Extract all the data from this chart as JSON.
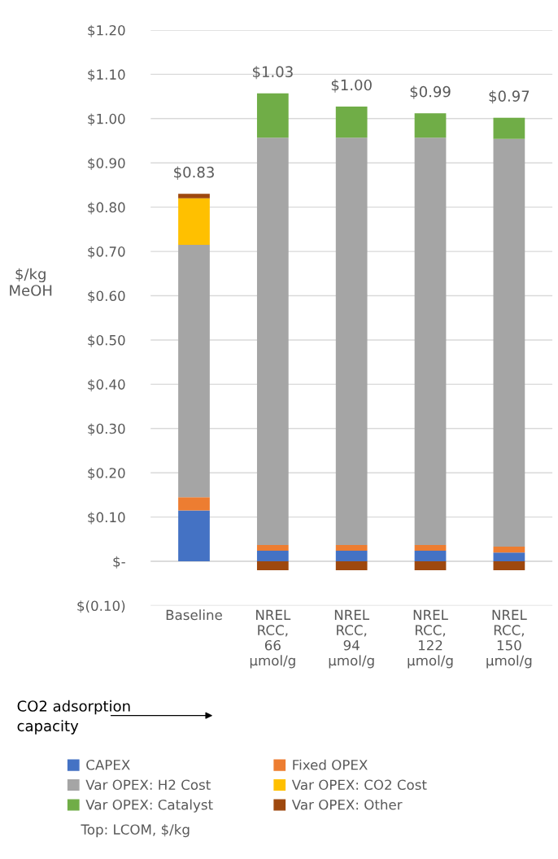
{
  "chart_data": {
    "type": "bar",
    "stacked": true,
    "ylabel": "$/kg\nMeOH",
    "categories": [
      "Baseline",
      "NREL\nRCC,\n66\nμmol/g",
      "NREL\nRCC,\n94\nμmol/g",
      "NREL\nRCC,\n122\nμmol/g",
      "NREL\nRCC,\n150\nμmol/g"
    ],
    "series": [
      {
        "name": "CAPEX",
        "color": "#4472c4",
        "values": [
          0.115,
          0.024,
          0.024,
          0.024,
          0.02
        ]
      },
      {
        "name": "Fixed OPEX",
        "color": "#ed7d31",
        "values": [
          0.03,
          0.013,
          0.013,
          0.013,
          0.013
        ]
      },
      {
        "name": "Var OPEX: H2 Cost",
        "color": "#a5a5a5",
        "values": [
          0.57,
          0.92,
          0.92,
          0.92,
          0.921
        ]
      },
      {
        "name": "Var OPEX: CO2 Cost",
        "color": "#ffc000",
        "values": [
          0.105,
          0,
          0,
          0,
          0
        ]
      },
      {
        "name": "Var OPEX: Catalyst",
        "color": "#70ad47",
        "values": [
          0,
          0.1,
          0.07,
          0.055,
          0.048
        ]
      },
      {
        "name": "Var OPEX: Other",
        "color": "#9e480e",
        "values": [
          0.01,
          -0.02,
          -0.02,
          -0.02,
          -0.02
        ]
      }
    ],
    "totals": [
      "$0.83",
      "$1.03",
      "$1.00",
      "$0.99",
      "$0.97"
    ],
    "ylim": [
      -0.1,
      1.2
    ],
    "yticks": [
      {
        "value": -0.1,
        "label": "$(0.10)"
      },
      {
        "value": 0,
        "label": "$-"
      },
      {
        "value": 0.1,
        "label": "$0.10"
      },
      {
        "value": 0.2,
        "label": "$0.20"
      },
      {
        "value": 0.3,
        "label": "$0.30"
      },
      {
        "value": 0.4,
        "label": "$0.40"
      },
      {
        "value": 0.5,
        "label": "$0.50"
      },
      {
        "value": 0.6,
        "label": "$0.60"
      },
      {
        "value": 0.7,
        "label": "$0.70"
      },
      {
        "value": 0.8,
        "label": "$0.80"
      },
      {
        "value": 0.9,
        "label": "$0.90"
      },
      {
        "value": 1.0,
        "label": "$1.00"
      },
      {
        "value": 1.1,
        "label": "$1.10"
      },
      {
        "value": 1.2,
        "label": "$1.20"
      }
    ],
    "grid": "y",
    "legend": "bottom",
    "annotations": [
      "CO2 adsorption\ncapacity",
      "Top: LCOM, $/kg"
    ]
  }
}
